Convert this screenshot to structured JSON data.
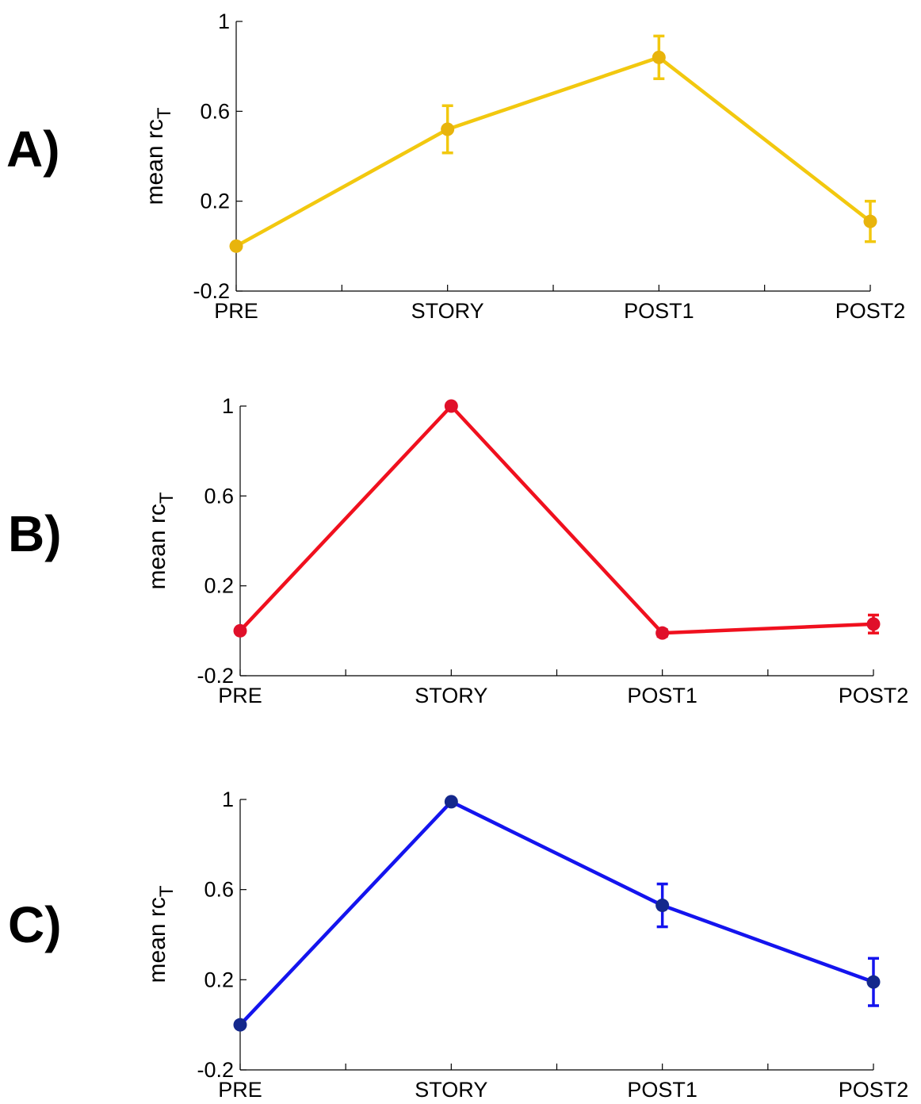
{
  "chart_data": [
    {
      "panel_label": "A)",
      "type": "line",
      "ylabel": "mean rc",
      "ylabel_subscript": "T",
      "categories": [
        "PRE",
        "STORY",
        "POST1",
        "POST2"
      ],
      "yticks": [
        "-0.2",
        "0.2",
        "0.6",
        "1"
      ],
      "ylim": [
        -0.2,
        1
      ],
      "grid": false,
      "series": [
        {
          "values": [
            0.0,
            0.52,
            0.84,
            0.11
          ],
          "errors": [
            0.0,
            0.105,
            0.095,
            0.09
          ],
          "color": "#f2c80f",
          "marker_color": "#e8b40c"
        }
      ]
    },
    {
      "panel_label": "B)",
      "type": "line",
      "ylabel": "mean rc",
      "ylabel_subscript": "T",
      "categories": [
        "PRE",
        "STORY",
        "POST1",
        "POST2"
      ],
      "yticks": [
        "-0.2",
        "0.2",
        "0.6",
        "1"
      ],
      "ylim": [
        -0.2,
        1
      ],
      "grid": false,
      "series": [
        {
          "values": [
            0.0,
            1.0,
            -0.01,
            0.03
          ],
          "errors": [
            0.0,
            0.0,
            0.015,
            0.04
          ],
          "color": "#f0101e",
          "marker_color": "#e0102a"
        }
      ]
    },
    {
      "panel_label": "C)",
      "type": "line",
      "ylabel": "mean rc",
      "ylabel_subscript": "T",
      "categories": [
        "PRE",
        "STORY",
        "POST1",
        "POST2"
      ],
      "yticks": [
        "-0.2",
        "0.2",
        "0.6",
        "1"
      ],
      "ylim": [
        -0.2,
        1
      ],
      "grid": false,
      "series": [
        {
          "values": [
            0.0,
            0.99,
            0.53,
            0.19
          ],
          "errors": [
            0.0,
            0.0,
            0.095,
            0.105
          ],
          "color": "#1414ee",
          "marker_color": "#14288c"
        }
      ]
    }
  ]
}
